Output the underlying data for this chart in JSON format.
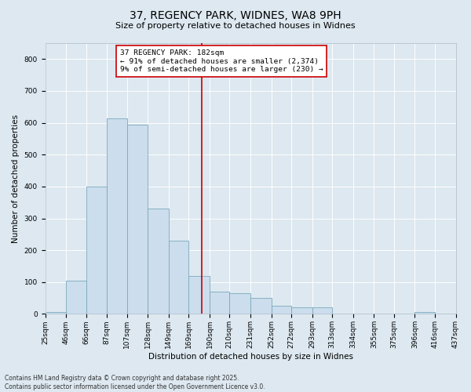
{
  "title": "37, REGENCY PARK, WIDNES, WA8 9PH",
  "subtitle": "Size of property relative to detached houses in Widnes",
  "xlabel": "Distribution of detached houses by size in Widnes",
  "ylabel": "Number of detached properties",
  "bar_color": "#ccdded",
  "bar_edge_color": "#7aaabb",
  "background_color": "#dde8f0",
  "grid_color": "#ffffff",
  "vline_x": 182,
  "vline_color": "#cc0000",
  "bin_edges": [
    25,
    46,
    66,
    87,
    107,
    128,
    149,
    169,
    190,
    210,
    231,
    252,
    272,
    293,
    313,
    334,
    355,
    375,
    396,
    416,
    437
  ],
  "bin_labels": [
    "25sqm",
    "46sqm",
    "66sqm",
    "87sqm",
    "107sqm",
    "128sqm",
    "149sqm",
    "169sqm",
    "190sqm",
    "210sqm",
    "231sqm",
    "252sqm",
    "272sqm",
    "293sqm",
    "313sqm",
    "334sqm",
    "355sqm",
    "375sqm",
    "396sqm",
    "416sqm",
    "437sqm"
  ],
  "bar_heights": [
    5,
    105,
    400,
    615,
    595,
    330,
    230,
    120,
    70,
    65,
    50,
    25,
    20,
    20,
    0,
    0,
    0,
    0,
    5,
    0
  ],
  "ylim": [
    0,
    850
  ],
  "yticks": [
    0,
    100,
    200,
    300,
    400,
    500,
    600,
    700,
    800
  ],
  "annotation_text": "37 REGENCY PARK: 182sqm\n← 91% of detached houses are smaller (2,374)\n9% of semi-detached houses are larger (230) →",
  "annotation_box_color": "#ffffff",
  "annotation_box_edge_color": "#cc0000",
  "footer_line1": "Contains HM Land Registry data © Crown copyright and database right 2025.",
  "footer_line2": "Contains public sector information licensed under the Open Government Licence v3.0.",
  "title_fontsize": 10,
  "subtitle_fontsize": 8,
  "axis_label_fontsize": 7.5,
  "tick_fontsize": 6.5,
  "annotation_fontsize": 6.8,
  "footer_fontsize": 5.5
}
